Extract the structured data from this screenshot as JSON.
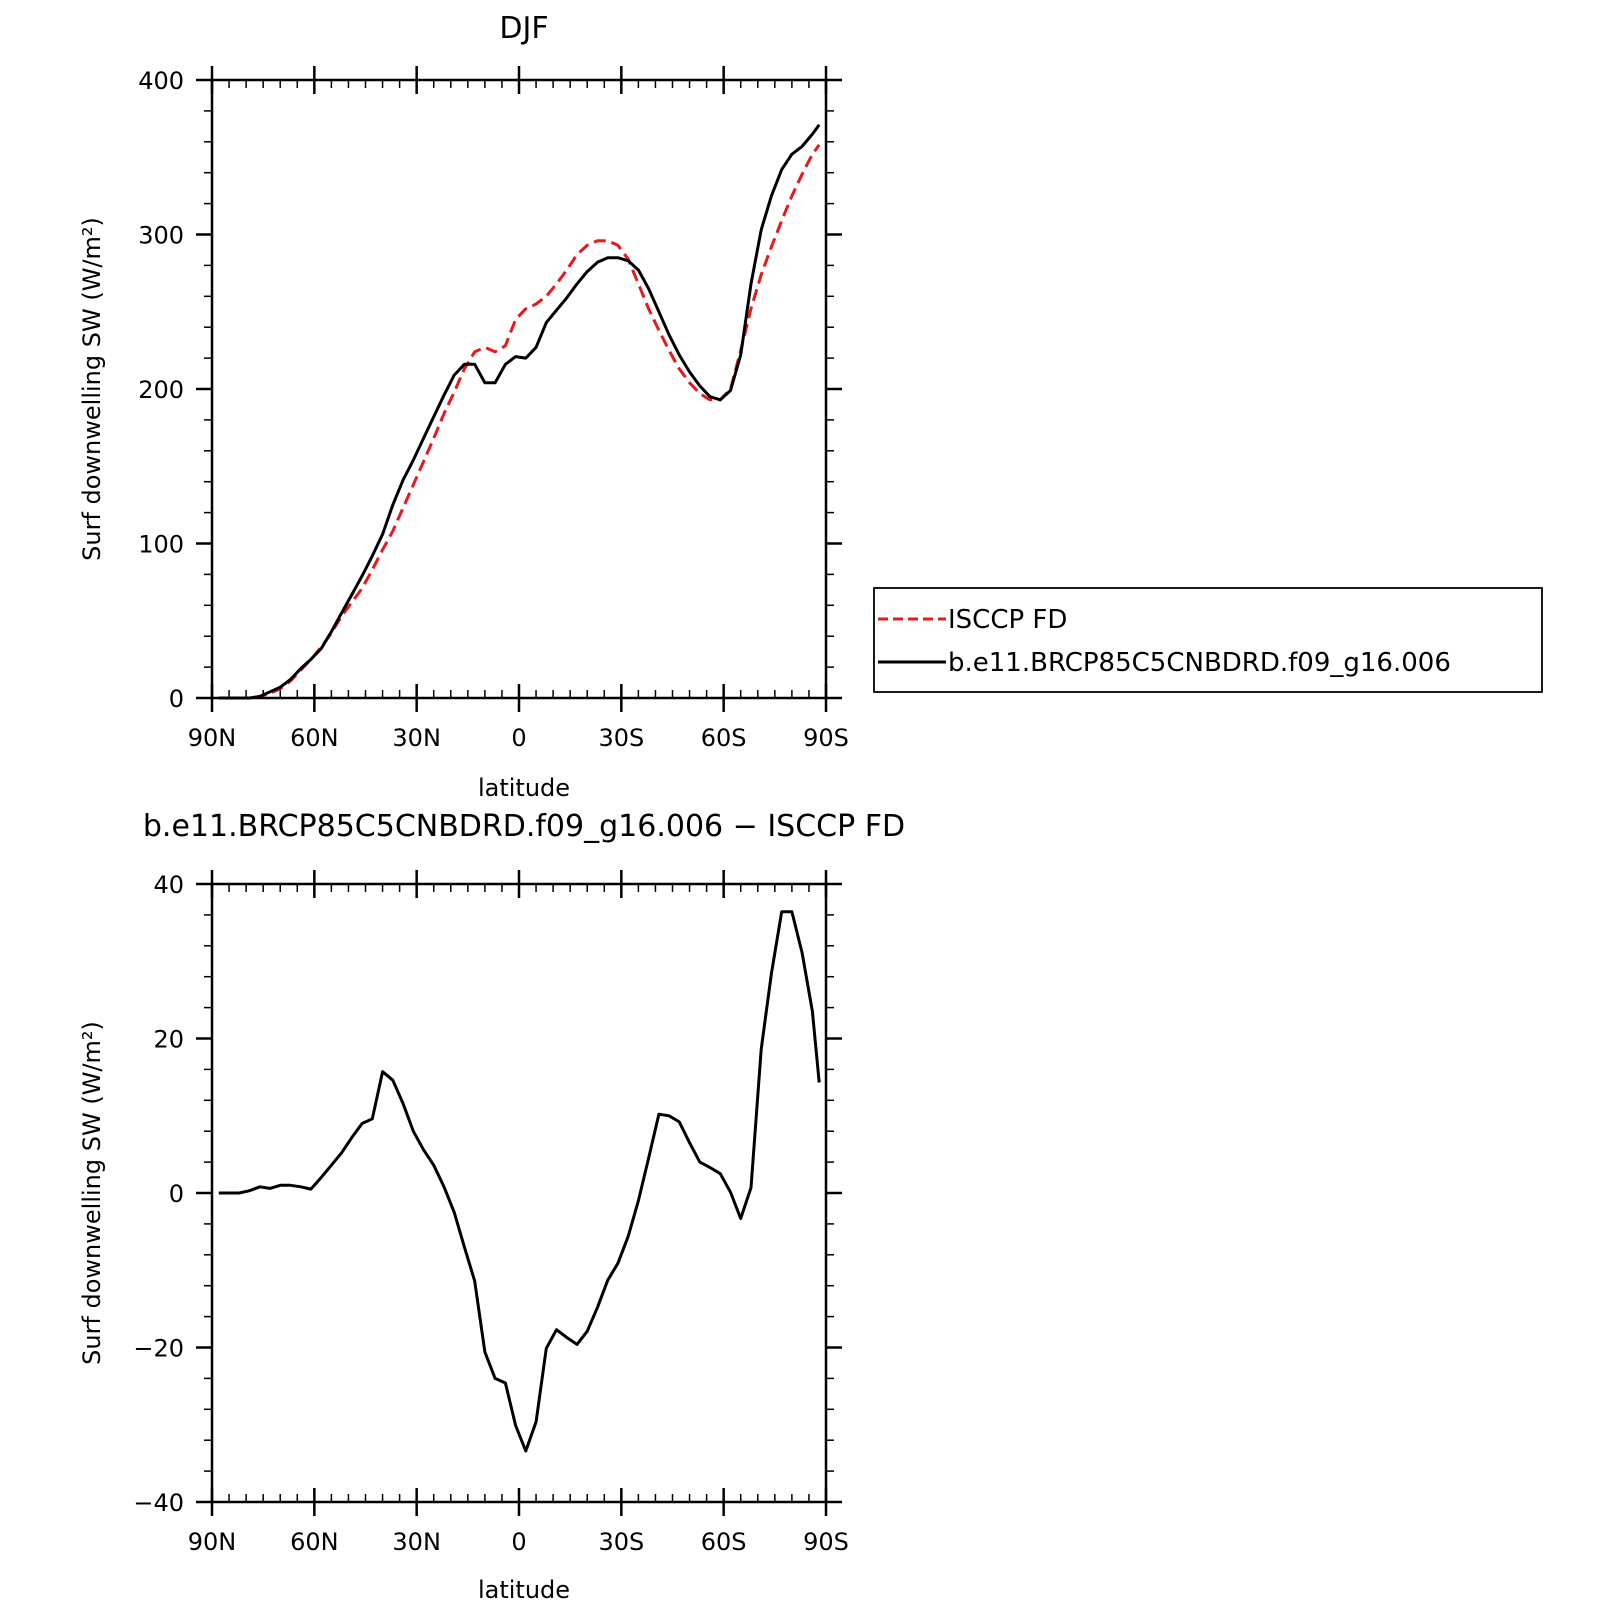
{
  "chart_data": [
    {
      "type": "line",
      "title": "DJF",
      "xlabel": "latitude",
      "ylabel": "Surf downwelling SW (W/m²)",
      "xlim": [
        -90,
        90
      ],
      "ylim": [
        0,
        400
      ],
      "x_ticks": [
        -90,
        -60,
        -30,
        0,
        30,
        60,
        90
      ],
      "x_tick_labels": [
        "90N",
        "60N",
        "30N",
        "0",
        "30S",
        "60S",
        "90S"
      ],
      "y_ticks": [
        0,
        100,
        200,
        300,
        400
      ],
      "y_tick_labels": [
        "0",
        "100",
        "200",
        "300",
        "400"
      ],
      "legend_placement": "right",
      "series": [
        {
          "name": "ISCCP FD",
          "color": "#e8191a",
          "dash": "dashed",
          "x": [
            -88,
            -85,
            -82,
            -79,
            -76,
            -73,
            -70,
            -67,
            -64,
            -61,
            -58,
            -55,
            -52,
            -49,
            -46,
            -43,
            -40,
            -37,
            -34,
            -31,
            -28,
            -25,
            -22,
            -19,
            -16,
            -13,
            -10,
            -7,
            -4,
            -1,
            2,
            5,
            8,
            11,
            14,
            17,
            20,
            23,
            26,
            29,
            32,
            35,
            38,
            41,
            44,
            47,
            50,
            53,
            56,
            59,
            62,
            65,
            68,
            71,
            74,
            77,
            80,
            83,
            86,
            88
          ],
          "y": [
            0,
            0,
            0,
            0,
            1,
            3,
            6,
            11,
            18,
            25,
            33,
            42,
            53,
            62,
            71,
            83,
            96,
            108,
            123,
            138,
            153,
            168,
            184,
            198,
            213,
            224,
            227,
            224,
            228,
            245,
            252,
            255,
            260,
            268,
            277,
            287,
            293,
            296,
            296,
            293,
            284,
            268,
            252,
            238,
            225,
            213,
            204,
            197,
            193,
            193,
            200,
            225,
            252,
            274,
            292,
            309,
            325,
            339,
            352,
            358
          ]
        },
        {
          "name": "b.e11.BRCP85C5CNBDRD.f09_g16.006",
          "color": "#000000",
          "dash": "solid",
          "x": [
            -88,
            -85,
            -82,
            -79,
            -76,
            -73,
            -70,
            -67,
            -64,
            -61,
            -58,
            -55,
            -52,
            -49,
            -46,
            -43,
            -40,
            -37,
            -34,
            -31,
            -28,
            -25,
            -22,
            -19,
            -16,
            -13,
            -10,
            -7,
            -4,
            -1,
            2,
            5,
            8,
            11,
            14,
            17,
            20,
            23,
            26,
            29,
            32,
            35,
            38,
            41,
            44,
            47,
            50,
            53,
            56,
            59,
            62,
            65,
            68,
            71,
            74,
            77,
            80,
            83,
            86,
            88
          ],
          "y": [
            0,
            0,
            0,
            0,
            1,
            4,
            7,
            12,
            19,
            25,
            32,
            43,
            55,
            67,
            79,
            92,
            106,
            125,
            141,
            154,
            168,
            182,
            196,
            209,
            216,
            216,
            204,
            204,
            216,
            221,
            220,
            227,
            243,
            251,
            259,
            268,
            276,
            282,
            285,
            285,
            283,
            277,
            265,
            250,
            235,
            222,
            211,
            202,
            195,
            193,
            199,
            222,
            268,
            303,
            325,
            342,
            352,
            357,
            365,
            371
          ]
        }
      ]
    },
    {
      "type": "line",
      "title": "b.e11.BRCP85C5CNBDRD.f09_g16.006 − ISCCP FD",
      "xlabel": "latitude",
      "ylabel": "Surf downwelling SW (W/m²)",
      "xlim": [
        -90,
        90
      ],
      "ylim": [
        -40,
        40
      ],
      "x_ticks": [
        -90,
        -60,
        -30,
        0,
        30,
        60,
        90
      ],
      "x_tick_labels": [
        "90N",
        "60N",
        "30N",
        "0",
        "30S",
        "60S",
        "90S"
      ],
      "y_ticks": [
        -40,
        -20,
        0,
        20,
        40
      ],
      "y_tick_labels": [
        "−40",
        "−20",
        "0",
        "20",
        "40"
      ],
      "series": [
        {
          "color": "#000000",
          "dash": "solid",
          "x": [
            -88,
            -85,
            -82,
            -79,
            -76,
            -73,
            -70,
            -67,
            -64,
            -61,
            -58,
            -55,
            -52,
            -49,
            -46,
            -43,
            -40,
            -37,
            -34,
            -31,
            -28,
            -25,
            -22,
            -19,
            -16,
            -13,
            -10,
            -7,
            -4,
            -1,
            2,
            5,
            8,
            11,
            14,
            17,
            20,
            23,
            26,
            29,
            32,
            35,
            38,
            41,
            44,
            47,
            50,
            53,
            56,
            59,
            62,
            65,
            68,
            71,
            74,
            77,
            80,
            83,
            86,
            88
          ],
          "y": [
            0,
            0,
            0,
            0.3,
            0.8,
            0.6,
            1.0,
            1.0,
            0.8,
            0.5,
            2.0,
            3.6,
            5.2,
            7.2,
            9.0,
            9.6,
            15.7,
            14.6,
            11.6,
            8.0,
            5.6,
            3.6,
            0.8,
            -2.5,
            -7.0,
            -11.4,
            -20.6,
            -24.0,
            -24.6,
            -30.1,
            -33.4,
            -29.6,
            -20.1,
            -17.7,
            -18.7,
            -19.6,
            -17.9,
            -14.8,
            -11.3,
            -9.1,
            -5.6,
            -1.0,
            4.5,
            10.2,
            10.0,
            9.2,
            6.5,
            4.0,
            3.3,
            2.5,
            0.1,
            -3.3,
            0.7,
            18.6,
            28.4,
            36.4,
            36.4,
            31.1,
            23.5,
            14.3
          ]
        }
      ]
    }
  ],
  "legend": {
    "items": [
      {
        "label": "ISCCP FD"
      },
      {
        "label": "b.e11.BRCP85C5CNBDRD.f09_g16.006"
      }
    ]
  }
}
